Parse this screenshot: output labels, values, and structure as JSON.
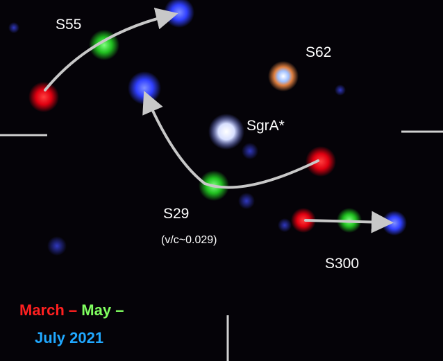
{
  "labels": {
    "s55": "S55",
    "s62": "S62",
    "sgra": "SgrA*",
    "s29": "S29",
    "s29_speed": "(v/c~0.029)",
    "s300": "S300"
  },
  "legend": {
    "march": "March",
    "dash1": "–",
    "may": "May",
    "dash2": "–",
    "july": "July 2021"
  }
}
